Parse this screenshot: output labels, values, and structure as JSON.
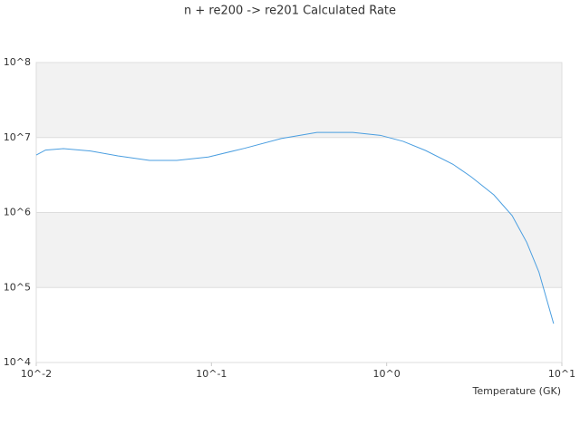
{
  "chart_data": {
    "type": "line",
    "title": "n + re200 -> re201 Calculated Rate",
    "x_label": "Temperature (GK)",
    "xscale": "log",
    "yscale": "log",
    "xlim": [
      0.01,
      10
    ],
    "ylim": [
      10000,
      100000000
    ],
    "xticks": [
      {
        "value": 0.01,
        "label": "10^-2"
      },
      {
        "value": 0.1,
        "label": "10^-1"
      },
      {
        "value": 1,
        "label": "10^0"
      },
      {
        "value": 10,
        "label": "10^1"
      }
    ],
    "yticks": [
      {
        "value": 10000,
        "label": "10^4"
      },
      {
        "value": 100000,
        "label": "10^5"
      },
      {
        "value": 1000000,
        "label": "10^6"
      },
      {
        "value": 10000000,
        "label": "10^7"
      },
      {
        "value": 100000000,
        "label": "10^8"
      }
    ],
    "grid": true,
    "band_color": "#f2f2f2",
    "x": [
      0.01,
      0.0113,
      0.0143,
      0.0204,
      0.0292,
      0.0443,
      0.0634,
      0.096,
      0.155,
      0.25,
      0.4,
      0.64,
      0.92,
      1.24,
      1.67,
      2.39,
      3.03,
      4.09,
      5.2,
      6.3,
      7.4,
      8.97
    ],
    "series": [
      {
        "color": "#4a9ee0",
        "values": [
          5850000,
          6800000,
          7100000,
          6600000,
          5700000,
          4950000,
          4950000,
          5500000,
          7200000,
          9700000,
          11700000,
          11700000,
          10700000,
          8900000,
          6700000,
          4400000,
          3000000,
          1720000,
          910000,
          400000,
          160000,
          33000
        ]
      }
    ]
  }
}
